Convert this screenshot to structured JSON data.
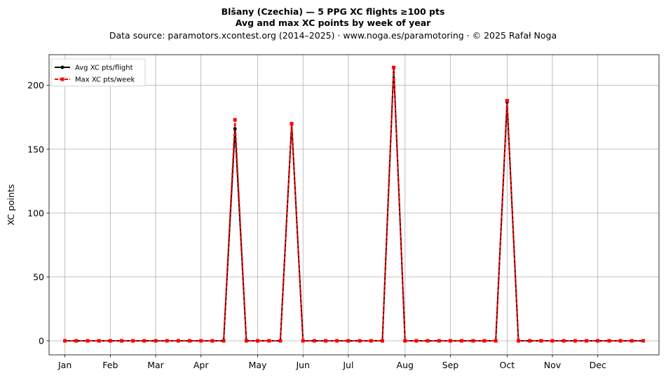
{
  "chart_data": {
    "type": "line",
    "title_line1": "Blšany (Czechia)  —  5 PPG XC flights ≥100 pts",
    "title_line2": "Avg and max XC points by week of year",
    "subtitle": "Data source: paramotors.xcontest.org (2014–2025)  ·  www.noga.es/paramotoring  ·  © 2025 Rafał Noga",
    "xlabel": "",
    "ylabel": "XC points",
    "x": [
      1,
      2,
      3,
      4,
      5,
      6,
      7,
      8,
      9,
      10,
      11,
      12,
      13,
      14,
      15,
      16,
      17,
      18,
      19,
      20,
      21,
      22,
      23,
      24,
      25,
      26,
      27,
      28,
      29,
      30,
      31,
      32,
      33,
      34,
      35,
      36,
      37,
      38,
      39,
      40,
      41,
      42,
      43,
      44,
      45,
      46,
      47,
      48,
      49,
      50,
      51,
      52
    ],
    "xlim": [
      -0.4,
      53.4
    ],
    "xticks": [
      {
        "week": 1,
        "label": "Jan"
      },
      {
        "week": 5,
        "label": "Feb"
      },
      {
        "week": 9,
        "label": "Mar"
      },
      {
        "week": 13,
        "label": "Apr"
      },
      {
        "week": 18,
        "label": "May"
      },
      {
        "week": 22,
        "label": "Jun"
      },
      {
        "week": 26,
        "label": "Jul"
      },
      {
        "week": 31,
        "label": "Aug"
      },
      {
        "week": 35,
        "label": "Sep"
      },
      {
        "week": 40,
        "label": "Oct"
      },
      {
        "week": 44,
        "label": "Nov"
      },
      {
        "week": 48,
        "label": "Dec"
      }
    ],
    "ylim": [
      -11,
      224
    ],
    "yticks": [
      0,
      50,
      100,
      150,
      200
    ],
    "grid": true,
    "legend_position": "top-left",
    "series": [
      {
        "name": "Avg XC pts/flight",
        "color": "#000000",
        "marker": "circle",
        "line": "solid",
        "values": [
          0,
          0,
          0,
          0,
          0,
          0,
          0,
          0,
          0,
          0,
          0,
          0,
          0,
          0,
          0,
          166,
          0,
          0,
          0,
          0,
          170,
          0,
          0,
          0,
          0,
          0,
          0,
          0,
          0,
          214,
          0,
          0,
          0,
          0,
          0,
          0,
          0,
          0,
          0,
          187,
          0,
          0,
          0,
          0,
          0,
          0,
          0,
          0,
          0,
          0,
          0,
          0
        ]
      },
      {
        "name": "Max XC pts/week",
        "color": "#ff0000",
        "marker": "square",
        "line": "dashed",
        "values": [
          0,
          0,
          0,
          0,
          0,
          0,
          0,
          0,
          0,
          0,
          0,
          0,
          0,
          0,
          0,
          173,
          0,
          0,
          0,
          0,
          170,
          0,
          0,
          0,
          0,
          0,
          0,
          0,
          0,
          214,
          0,
          0,
          0,
          0,
          0,
          0,
          0,
          0,
          0,
          188,
          0,
          0,
          0,
          0,
          0,
          0,
          0,
          0,
          0,
          0,
          0,
          0
        ]
      }
    ]
  }
}
